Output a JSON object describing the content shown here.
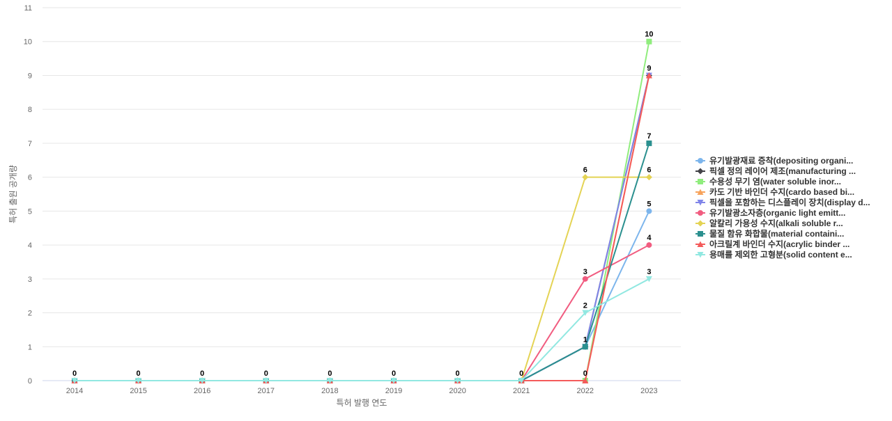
{
  "chart_data": {
    "type": "line",
    "xlabel": "특허 발행 연도",
    "ylabel": "특허 출원 공개량",
    "x": [
      "2014",
      "2015",
      "2016",
      "2017",
      "2018",
      "2019",
      "2020",
      "2021",
      "2022",
      "2023"
    ],
    "ylim": [
      0,
      11
    ],
    "yticks": [
      0,
      1,
      2,
      3,
      4,
      5,
      6,
      7,
      8,
      9,
      10,
      11
    ],
    "grid": true,
    "legend_position": "right",
    "series": [
      {
        "name": "유기발광재료 증착(depositing organi...",
        "color": "#7cb5ec",
        "marker": "circle",
        "values": [
          0,
          0,
          0,
          0,
          0,
          0,
          0,
          0,
          1,
          5
        ]
      },
      {
        "name": "픽셀 정의 레이어 제조(manufacturing ...",
        "color": "#434348",
        "marker": "diamond",
        "values": [
          0,
          0,
          0,
          0,
          0,
          0,
          0,
          0,
          1,
          9
        ]
      },
      {
        "name": "수용성 무기 염(water soluble inor...",
        "color": "#90ed7d",
        "marker": "square",
        "values": [
          0,
          0,
          0,
          0,
          0,
          0,
          0,
          0,
          0,
          10
        ]
      },
      {
        "name": "카도 기반 바인더 수지(cardo based bi...",
        "color": "#f7a35c",
        "marker": "triangle",
        "values": [
          0,
          0,
          0,
          0,
          0,
          0,
          0,
          0,
          0,
          9
        ]
      },
      {
        "name": "픽셀을 포함하는 디스플레이 장치(display d...",
        "color": "#8085e9",
        "marker": "triangle-down",
        "values": [
          0,
          0,
          0,
          0,
          0,
          0,
          0,
          0,
          1,
          9
        ]
      },
      {
        "name": "유기발광소자층(organic light emitt...",
        "color": "#f15c80",
        "marker": "circle",
        "values": [
          0,
          0,
          0,
          0,
          0,
          0,
          0,
          0,
          3,
          4
        ]
      },
      {
        "name": "알칼리 가용성 수지(alkali soluble r...",
        "color": "#e4d354",
        "marker": "diamond",
        "values": [
          0,
          0,
          0,
          0,
          0,
          0,
          0,
          0,
          6,
          6
        ]
      },
      {
        "name": "물질 함유 화합물(material containi...",
        "color": "#2b908f",
        "marker": "square",
        "values": [
          0,
          0,
          0,
          0,
          0,
          0,
          0,
          0,
          1,
          7
        ]
      },
      {
        "name": "아크릴계 바인더 수지(acrylic binder ...",
        "color": "#f45b5b",
        "marker": "triangle",
        "values": [
          0,
          0,
          0,
          0,
          0,
          0,
          0,
          0,
          0,
          9
        ]
      },
      {
        "name": "용매를 제외한 고형분(solid content e...",
        "color": "#91e8e1",
        "marker": "triangle-down",
        "values": [
          0,
          0,
          0,
          0,
          0,
          0,
          0,
          0,
          2,
          3
        ]
      }
    ],
    "data_labels": [
      {
        "x": "2014",
        "text": "0"
      },
      {
        "x": "2015",
        "text": "0"
      },
      {
        "x": "2016",
        "text": "0"
      },
      {
        "x": "2017",
        "text": "0"
      },
      {
        "x": "2018",
        "text": "0"
      },
      {
        "x": "2019",
        "text": "0"
      },
      {
        "x": "2020",
        "text": "0"
      },
      {
        "x": "2021",
        "text": "0"
      },
      {
        "x": "2022",
        "text": "6"
      },
      {
        "x": "2022",
        "text": "3"
      },
      {
        "x": "2022",
        "text": "2"
      },
      {
        "x": "2022",
        "text": "1"
      },
      {
        "x": "2022",
        "text": "0"
      },
      {
        "x": "2023",
        "text": "10"
      },
      {
        "x": "2023",
        "text": "9"
      },
      {
        "x": "2023",
        "text": "7"
      },
      {
        "x": "2023",
        "text": "6"
      },
      {
        "x": "2023",
        "text": "5"
      },
      {
        "x": "2023",
        "text": "4"
      },
      {
        "x": "2023",
        "text": "3"
      }
    ]
  }
}
